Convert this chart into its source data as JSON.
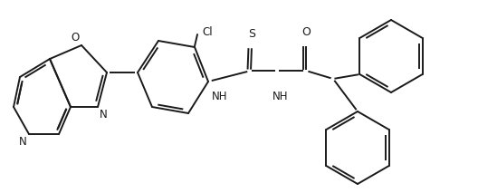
{
  "bg_color": "#ffffff",
  "line_color": "#1a1a1a",
  "line_width": 1.4,
  "fig_width": 5.28,
  "fig_height": 2.13,
  "dpi": 100,
  "xlim": [
    0,
    528
  ],
  "ylim": [
    0,
    213
  ]
}
